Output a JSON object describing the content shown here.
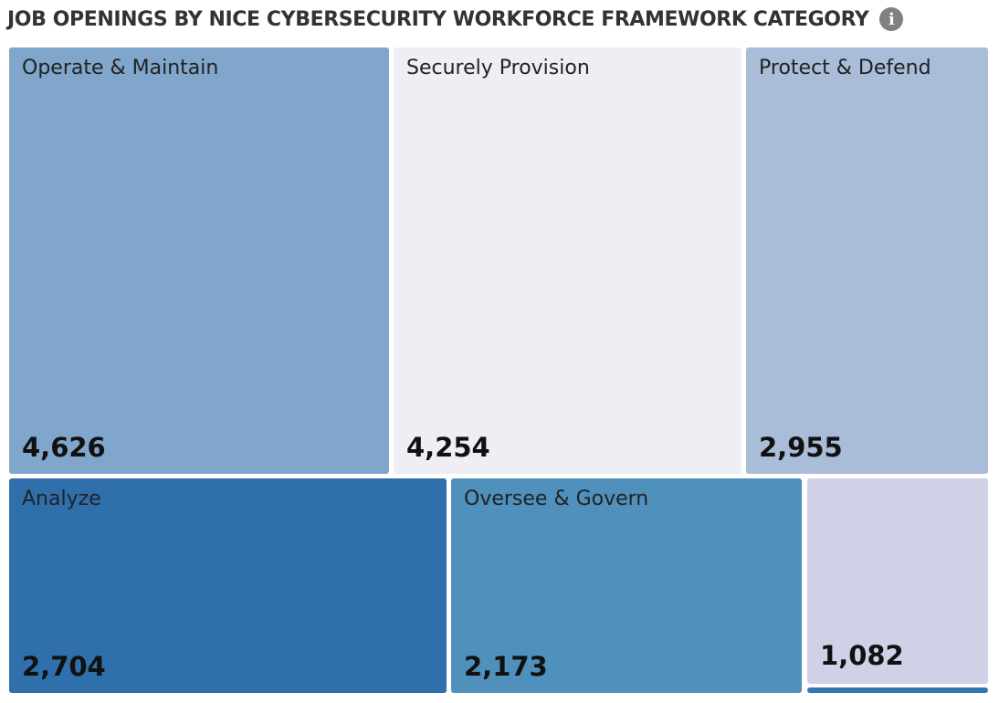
{
  "header": {
    "title": "JOB OPENINGS BY NICE CYBERSECURITY WORKFORCE FRAMEWORK CATEGORY",
    "info_icon": "info-icon"
  },
  "chart_data": {
    "type": "treemap",
    "title": "JOB OPENINGS BY NICE CYBERSECURITY WORKFORCE FRAMEWORK CATEGORY",
    "items": [
      {
        "name": "Operate & Maintain",
        "value": 4626,
        "display": "4,626",
        "color": "#80a6cb"
      },
      {
        "name": "Securely Provision",
        "value": 4254,
        "display": "4,254",
        "color": "#efeef4"
      },
      {
        "name": "Protect & Defend",
        "value": 2955,
        "display": "2,955",
        "color": "#a9bcd8"
      },
      {
        "name": "Analyze",
        "value": 2704,
        "display": "2,704",
        "color": "#2f6fab"
      },
      {
        "name": "Oversee & Govern",
        "value": 2173,
        "display": "2,173",
        "color": "#4f90bd"
      },
      {
        "name": "",
        "value": 1082,
        "display": "1,082",
        "color": "#d0d1e6"
      },
      {
        "name": "",
        "value": null,
        "display": "",
        "color": "#3476b0"
      }
    ]
  }
}
